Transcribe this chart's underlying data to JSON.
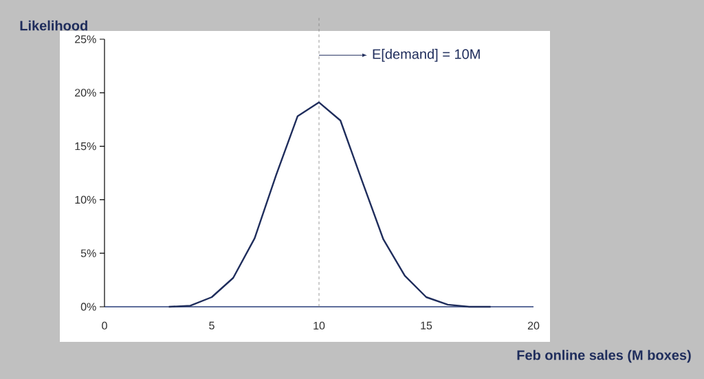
{
  "chart_data": {
    "type": "line",
    "xlabel": "Feb online sales (M boxes)",
    "ylabel": "Likelihood",
    "series": [
      {
        "color": "#1f2d5c",
        "x": [
          3,
          4,
          5,
          6,
          7,
          8,
          9,
          10,
          11,
          12,
          13,
          14,
          15,
          16,
          17,
          18
        ],
        "values": [
          0,
          0.1,
          0.9,
          2.7,
          6.4,
          12.3,
          17.8,
          19.1,
          17.4,
          11.8,
          6.3,
          2.9,
          0.9,
          0.2,
          0,
          0
        ]
      }
    ],
    "xlim": [
      0,
      20
    ],
    "xticks": [
      0,
      5,
      10,
      15,
      20
    ],
    "ylim": [
      0,
      25
    ],
    "yticks": [
      {
        "value": 0,
        "label": "0%"
      },
      {
        "value": 5,
        "label": "5%"
      },
      {
        "value": 10,
        "label": "10%"
      },
      {
        "value": 15,
        "label": "15%"
      },
      {
        "value": 20,
        "label": "20%"
      },
      {
        "value": 25,
        "label": "25%"
      }
    ],
    "ref_lines": [
      {
        "axis": "x",
        "value": 10,
        "label": "E[demand] = 10M",
        "color": "#808080",
        "line_style": "dashed"
      }
    ],
    "marker": "none",
    "line_style": "solid"
  }
}
